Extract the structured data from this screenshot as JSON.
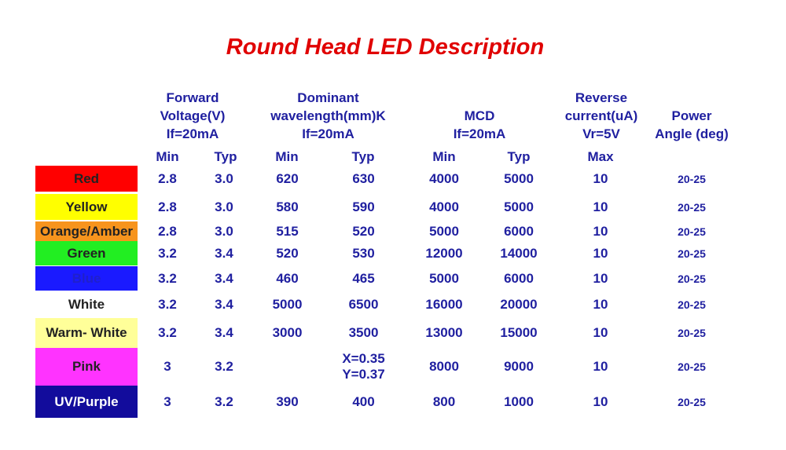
{
  "title": "Round Head LED Description",
  "headers": {
    "forward": [
      "Forward",
      "Voltage(V)",
      "If=20mA"
    ],
    "dominant": [
      "Dominant",
      "wavelength(mm)K",
      "If=20mA"
    ],
    "mcd": [
      "MCD",
      "If=20mA"
    ],
    "reverse": [
      "Reverse",
      "current(uA)",
      "Vr=5V"
    ],
    "power": [
      "Power",
      "Angle (deg)"
    ],
    "sub": [
      "Min",
      "Typ",
      "Min",
      "Typ",
      "Min",
      "Typ",
      "Max"
    ]
  },
  "rows": [
    {
      "color": "Red",
      "bg": "#ff0000",
      "fg": "#222222",
      "vmin": "2.8",
      "vtyp": "3.0",
      "wmin": "620",
      "wtyp": "630",
      "mmin": "4000",
      "mtyp": "5000",
      "rmax": "10",
      "angle": "20-25"
    },
    {
      "color": "Yellow",
      "bg": "#ffff00",
      "fg": "#222222",
      "vmin": "2.8",
      "vtyp": "3.0",
      "wmin": "580",
      "wtyp": "590",
      "mmin": "4000",
      "mtyp": "5000",
      "rmax": "10",
      "angle": "20-25"
    },
    {
      "color": "Orange/Amber",
      "bg": "#f7941d",
      "fg": "#222222",
      "vmin": "2.8",
      "vtyp": "3.0",
      "wmin": "515",
      "wtyp": "520",
      "mmin": "5000",
      "mtyp": "6000",
      "rmax": "10",
      "angle": "20-25"
    },
    {
      "color": "Green",
      "bg": "#22ee22",
      "fg": "#222222",
      "vmin": "3.2",
      "vtyp": "3.4",
      "wmin": "520",
      "wtyp": "530",
      "mmin": "12000",
      "mtyp": "14000",
      "rmax": "10",
      "angle": "20-25"
    },
    {
      "color": "Blue",
      "bg": "#1a1aff",
      "fg": "#2020cc",
      "vmin": "3.2",
      "vtyp": "3.4",
      "wmin": "460",
      "wtyp": "465",
      "mmin": "5000",
      "mtyp": "6000",
      "rmax": "10",
      "angle": "20-25"
    },
    {
      "color": "White",
      "bg": "#ffffff",
      "fg": "#222222",
      "vmin": "3.2",
      "vtyp": "3.4",
      "wmin": "5000",
      "wtyp": "6500",
      "mmin": "16000",
      "mtyp": "20000",
      "rmax": "10",
      "angle": "20-25"
    },
    {
      "color": "Warm- White",
      "bg": "#ffff99",
      "fg": "#222222",
      "vmin": "3.2",
      "vtyp": "3.4",
      "wmin": "3000",
      "wtyp": "3500",
      "mmin": "13000",
      "mtyp": "15000",
      "rmax": "10",
      "angle": "20-25"
    },
    {
      "color": "Pink",
      "bg": "#ff33ff",
      "fg": "#222222",
      "vmin": "3",
      "vtyp": "3.2",
      "wmin": "",
      "wtyp": "X=0.35\nY=0.37",
      "mmin": "8000",
      "mtyp": "9000",
      "rmax": "10",
      "angle": "20-25"
    },
    {
      "color": "UV/Purple",
      "bg": "#120c9c",
      "fg": "#ffffff",
      "vmin": "3",
      "vtyp": "3.2",
      "wmin": "390",
      "wtyp": "400",
      "mmin": "800",
      "mtyp": "1000",
      "rmax": "10",
      "angle": "20-25"
    }
  ]
}
